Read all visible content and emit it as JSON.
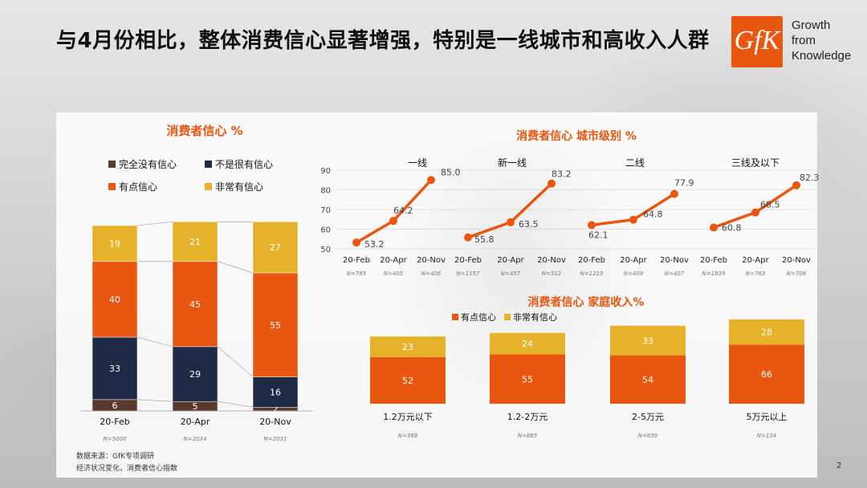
{
  "header": {
    "title": "与4月份相比，整体消费信心显著增强，特别是一线城市和高收入人群",
    "logo_text": "GfK",
    "tagline": [
      "Growth",
      "from",
      "Knowledge"
    ]
  },
  "footer": {
    "source_line1": "数据来源：GfK专项调研",
    "source_line2": "经济状况变化，消费者信心指数",
    "page": "2"
  },
  "colors": {
    "not_at_all": "#5a3a2e",
    "not_very": "#1f2a44",
    "somewhat": "#e8560f",
    "very": "#e5b22a",
    "accent": "#e8560f"
  },
  "chart_data": [
    {
      "type": "bar",
      "stacked": true,
      "title": "消费者信心 %",
      "categories": [
        "20-Feb",
        "20-Apr",
        "20-Nov"
      ],
      "sample_sizes": [
        "N=5000",
        "N=2034",
        "N=2031"
      ],
      "legend_placement": "top",
      "series": [
        {
          "name": "完全没有信心",
          "values": [
            6,
            5,
            2
          ],
          "color": "#5a3a2e"
        },
        {
          "name": "不是很有信心",
          "values": [
            33,
            29,
            16
          ],
          "color": "#1f2a44"
        },
        {
          "name": "有点信心",
          "values": [
            40,
            45,
            55
          ],
          "color": "#e8560f"
        },
        {
          "name": "非常有信心",
          "values": [
            19,
            21,
            27
          ],
          "color": "#e5b22a"
        }
      ]
    },
    {
      "type": "line",
      "title": "消费者信心 城市级别 %",
      "ylim": [
        50,
        90
      ],
      "yticks": [
        50,
        60,
        70,
        80,
        90
      ],
      "grid": true,
      "groups": [
        {
          "name": "一线",
          "x": [
            "20-Feb",
            "20-Apr",
            "20-Nov"
          ],
          "values": [
            53.2,
            64.2,
            85.0
          ],
          "labels": [
            "53.2",
            "64.2",
            "85.0"
          ],
          "n": [
            "N=785",
            "N=405",
            "N=406"
          ]
        },
        {
          "name": "新一线",
          "x": [
            "20-Feb",
            "20-Apr",
            "20-Nov"
          ],
          "values": [
            55.8,
            63.5,
            83.2
          ],
          "labels": [
            "55.8",
            "63.5",
            "83.2"
          ],
          "n": [
            "N=1157",
            "N=457",
            "N=512"
          ]
        },
        {
          "name": "二线",
          "x": [
            "20-Feb",
            "20-Apr",
            "20-Nov"
          ],
          "values": [
            62.1,
            64.8,
            77.9
          ],
          "labels": [
            "62.1",
            "64.8",
            "77.9"
          ],
          "n": [
            "N=1219",
            "N=409",
            "N=407"
          ]
        },
        {
          "name": "三线及以下",
          "x": [
            "20-Feb",
            "20-Apr",
            "20-Nov"
          ],
          "values": [
            60.8,
            68.5,
            82.3
          ],
          "labels": [
            "60.8",
            "68.5",
            "82.3"
          ],
          "n": [
            "N=1839",
            "N=763",
            "N=706"
          ]
        }
      ]
    },
    {
      "type": "bar",
      "stacked": true,
      "title": "消费者信心 家庭收入%",
      "categories": [
        "1.2万元以下",
        "1.2-2万元",
        "2-5万元",
        "5万元以上"
      ],
      "sample_sizes": [
        "N=368",
        "N=865",
        "N=659",
        "N=134"
      ],
      "legend_placement": "top",
      "series": [
        {
          "name": "有点信心",
          "values": [
            52,
            55,
            54,
            66
          ],
          "color": "#e8560f"
        },
        {
          "name": "非常有信心",
          "values": [
            23,
            24,
            33,
            28
          ],
          "color": "#e5b22a"
        }
      ]
    }
  ]
}
